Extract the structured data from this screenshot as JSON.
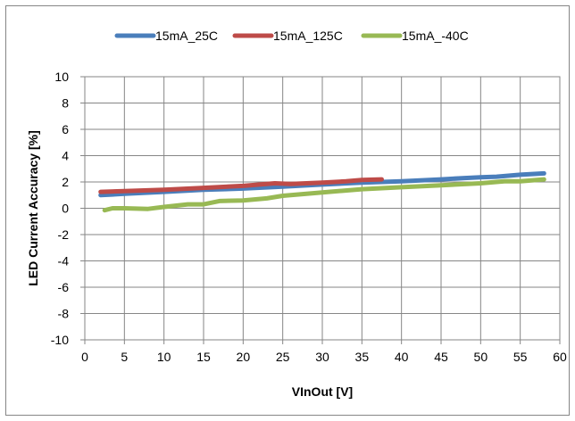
{
  "chart_data": {
    "type": "line",
    "xlabel": "VInOut [V]",
    "ylabel": "LED Current Accuracy [%]",
    "xlim": [
      0,
      60
    ],
    "ylim": [
      -10,
      10
    ],
    "x_ticks": [
      0,
      5,
      10,
      15,
      20,
      25,
      30,
      35,
      40,
      45,
      50,
      55,
      60
    ],
    "y_ticks": [
      10,
      8,
      6,
      4,
      2,
      0,
      -2,
      -4,
      -6,
      -8,
      -10
    ],
    "x_tick_labels": [
      "0",
      "5",
      "10",
      "15",
      "20",
      "25",
      "30",
      "35",
      "40",
      "45",
      "50",
      "55",
      "60"
    ],
    "y_tick_labels": [
      "10",
      "8",
      "6",
      "4",
      "2",
      "0",
      "-2",
      "-4",
      "-6",
      "-8",
      "-10"
    ],
    "grid": true,
    "legend_position": "top",
    "series": [
      {
        "name": "15mA_25C",
        "color": "#4a7ebb",
        "x": [
          2,
          5,
          10,
          15,
          20,
          25,
          30,
          35,
          40,
          45,
          48,
          50,
          52,
          55,
          58
        ],
        "y": [
          1.0,
          1.1,
          1.25,
          1.4,
          1.5,
          1.65,
          1.8,
          1.95,
          2.05,
          2.2,
          2.3,
          2.35,
          2.4,
          2.55,
          2.65
        ]
      },
      {
        "name": "15mA_125C",
        "color": "#be4b48",
        "x": [
          2,
          5,
          10,
          15,
          20,
          24,
          26,
          30,
          33,
          35,
          37.5
        ],
        "y": [
          1.25,
          1.3,
          1.4,
          1.55,
          1.7,
          1.9,
          1.85,
          1.95,
          2.05,
          2.15,
          2.2
        ]
      },
      {
        "name": "15mA_-40C",
        "color": "#98b954",
        "x": [
          2.5,
          3.5,
          5,
          8,
          10,
          13,
          15,
          17,
          20,
          23,
          25,
          30,
          35,
          40,
          45,
          50,
          53,
          55,
          58
        ],
        "y": [
          -0.15,
          0.0,
          0.0,
          -0.05,
          0.1,
          0.3,
          0.3,
          0.55,
          0.6,
          0.75,
          0.95,
          1.2,
          1.45,
          1.6,
          1.75,
          1.9,
          2.05,
          2.05,
          2.2
        ]
      }
    ]
  }
}
